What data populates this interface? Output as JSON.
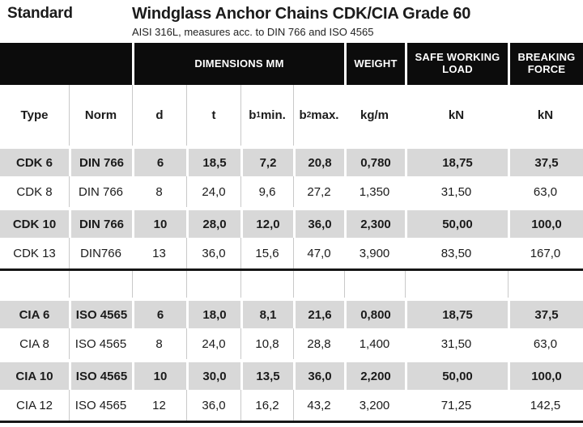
{
  "header": {
    "standard_label": "Standard",
    "title": "Windglass Anchor Chains CDK/CIA Grade 60",
    "subtitle": "AISI 316L, measures acc. to DIN 766 and ISO 4565"
  },
  "band": {
    "dimensions": "DIMENSIONS MM",
    "weight": "WEIGHT",
    "safe_working_load": "SAFE WORKING LOAD",
    "breaking_force": "BREAKING FORCE"
  },
  "columns": {
    "type": "Type",
    "norm": "Norm",
    "d": "d",
    "t": "t",
    "b1": {
      "base": "b",
      "sub": "1",
      "rest": "min."
    },
    "b2": {
      "base": "b",
      "sub": "2",
      "rest": "max."
    },
    "kgm": "kg/m",
    "kn_swl": "kN",
    "kn_bf": "kN"
  },
  "table": {
    "cdk_rows": [
      [
        "CDK 6",
        "DIN 766",
        "6",
        "18,5",
        "7,2",
        "20,8",
        "0,780",
        "18,75",
        "37,5"
      ],
      [
        "CDK 8",
        "DIN 766",
        "8",
        "24,0",
        "9,6",
        "27,2",
        "1,350",
        "31,50",
        "63,0"
      ],
      [
        "CDK 10",
        "DIN 766",
        "10",
        "28,0",
        "12,0",
        "36,0",
        "2,300",
        "50,00",
        "100,0"
      ],
      [
        "CDK 13",
        "DIN766",
        "13",
        "36,0",
        "15,6",
        "47,0",
        "3,900",
        "83,50",
        "167,0"
      ]
    ],
    "cia_rows": [
      [
        "CIA 6",
        "ISO 4565",
        "6",
        "18,0",
        "8,1",
        "21,6",
        "0,800",
        "18,75",
        "37,5"
      ],
      [
        "CIA 8",
        "ISO 4565",
        "8",
        "24,0",
        "10,8",
        "28,8",
        "1,400",
        "31,50",
        "63,0"
      ],
      [
        "CIA 10",
        "ISO 4565",
        "10",
        "30,0",
        "13,5",
        "36,0",
        "2,200",
        "50,00",
        "100,0"
      ],
      [
        "CIA 12",
        "ISO 4565",
        "12",
        "36,0",
        "16,2",
        "43,2",
        "3,200",
        "71,25",
        "142,5"
      ]
    ]
  },
  "colors": {
    "band_bg": "#0c0c0c",
    "stripe_bg": "#d8d8d8",
    "rule_line": "#c9c9c9",
    "text": "#1b1b1b"
  }
}
